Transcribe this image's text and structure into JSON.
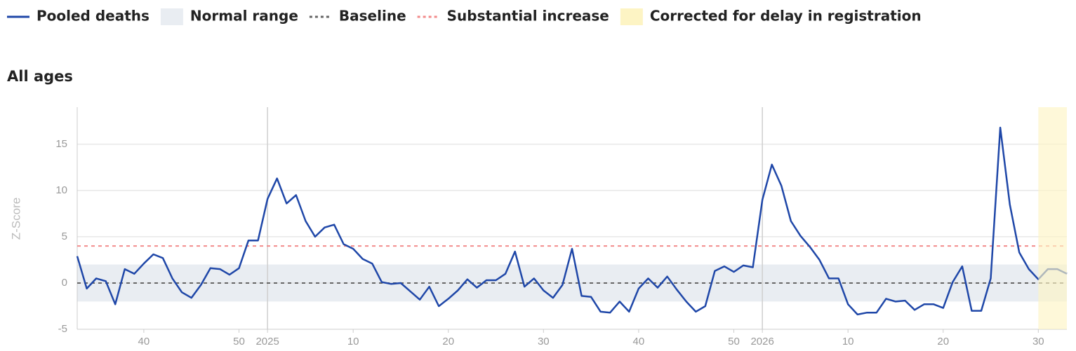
{
  "chart_data": {
    "type": "line",
    "subtitle": "All ages",
    "ylabel": "Z-Score",
    "x": [
      0,
      1,
      2,
      3,
      4,
      5,
      6,
      7,
      8,
      9,
      10,
      11,
      12,
      13,
      14,
      15,
      16,
      17,
      18,
      19,
      20,
      21,
      22,
      23,
      24,
      25,
      26,
      27,
      28,
      29,
      30,
      31,
      32,
      33,
      34,
      35,
      36,
      37,
      38,
      39,
      40,
      41,
      42,
      43,
      44,
      45,
      46,
      47,
      48,
      49,
      50,
      51,
      52,
      53,
      54,
      55,
      56,
      57,
      58,
      59,
      60,
      61,
      62,
      63,
      64,
      65,
      66,
      67,
      68,
      69,
      70,
      71,
      72,
      73,
      74,
      75,
      76,
      77,
      78,
      79,
      80,
      81,
      82,
      83,
      84,
      85,
      86,
      87,
      88,
      89,
      90,
      91,
      92,
      93,
      94,
      95,
      96,
      97,
      98,
      99,
      100,
      101,
      102,
      103,
      104
    ],
    "series": [
      {
        "name": "Pooled deaths",
        "color": "#1f47a8",
        "values": [
          2.9,
          -0.6,
          0.5,
          0.2,
          -2.3,
          1.5,
          1.0,
          2.1,
          3.1,
          2.7,
          0.5,
          -1.0,
          -1.6,
          -0.2,
          1.6,
          1.5,
          0.9,
          1.6,
          4.6,
          4.6,
          9.1,
          11.3,
          8.6,
          9.5,
          6.7,
          5.0,
          6.0,
          6.3,
          4.2,
          3.7,
          2.6,
          2.1,
          0.1,
          -0.1,
          0,
          -0.9,
          -1.8,
          -0.4,
          -2.5,
          -1.7,
          -0.8,
          0.4,
          -0.5,
          0.3,
          0.3,
          1.0,
          3.4,
          -0.4,
          0.5,
          -0.8,
          -1.6,
          -0.2,
          3.7,
          -1.4,
          -1.5,
          -3.1,
          -3.2,
          -2.0,
          -3.1,
          -0.6,
          0.5,
          -0.5,
          0.7,
          -0.7,
          -2.0,
          -3.1,
          -2.5,
          1.3,
          1.8,
          1.2,
          1.9,
          1.7,
          9.0,
          12.8,
          10.5,
          6.7,
          5.1,
          3.9,
          2.5,
          0.5,
          0.5,
          -2.3,
          -3.4,
          -3.2,
          -3.2,
          -1.7,
          -2.0,
          -1.9,
          -2.9,
          -2.3,
          -2.3,
          -2.7,
          0.1,
          1.8,
          -3.0,
          -3.0,
          0.5,
          16.8,
          8.5,
          3.3,
          1.5,
          0.4,
          1.5,
          1.5,
          1.0
        ]
      }
    ],
    "normal_range": {
      "name": "Normal range",
      "color": "#e9edf2",
      "range": [
        -2,
        2
      ]
    },
    "baseline": {
      "name": "Baseline",
      "color": "#666666",
      "value": 0
    },
    "substantial_increase": {
      "name": "Substantial increase",
      "color": "#f28b8b",
      "value": 4
    },
    "corrected_region": {
      "name": "Corrected for delay in registration",
      "color": "#fdf4c4",
      "start": 101
    },
    "xlim": [
      0,
      104
    ],
    "xticks": [
      {
        "value": 7,
        "label": "40"
      },
      {
        "value": 17,
        "label": "50"
      },
      {
        "value": 20,
        "label": "2025"
      },
      {
        "value": 29,
        "label": "10"
      },
      {
        "value": 39,
        "label": "20"
      },
      {
        "value": 49,
        "label": "30"
      },
      {
        "value": 59,
        "label": "40"
      },
      {
        "value": 69,
        "label": "50"
      },
      {
        "value": 72,
        "label": "2026"
      },
      {
        "value": 81,
        "label": "10"
      },
      {
        "value": 91,
        "label": "20"
      },
      {
        "value": 101,
        "label": "30"
      }
    ],
    "year_lines": [
      20,
      72
    ],
    "ylim": [
      -5,
      19
    ],
    "yticks": [
      -5,
      0,
      5,
      10,
      15
    ],
    "grid": true
  }
}
